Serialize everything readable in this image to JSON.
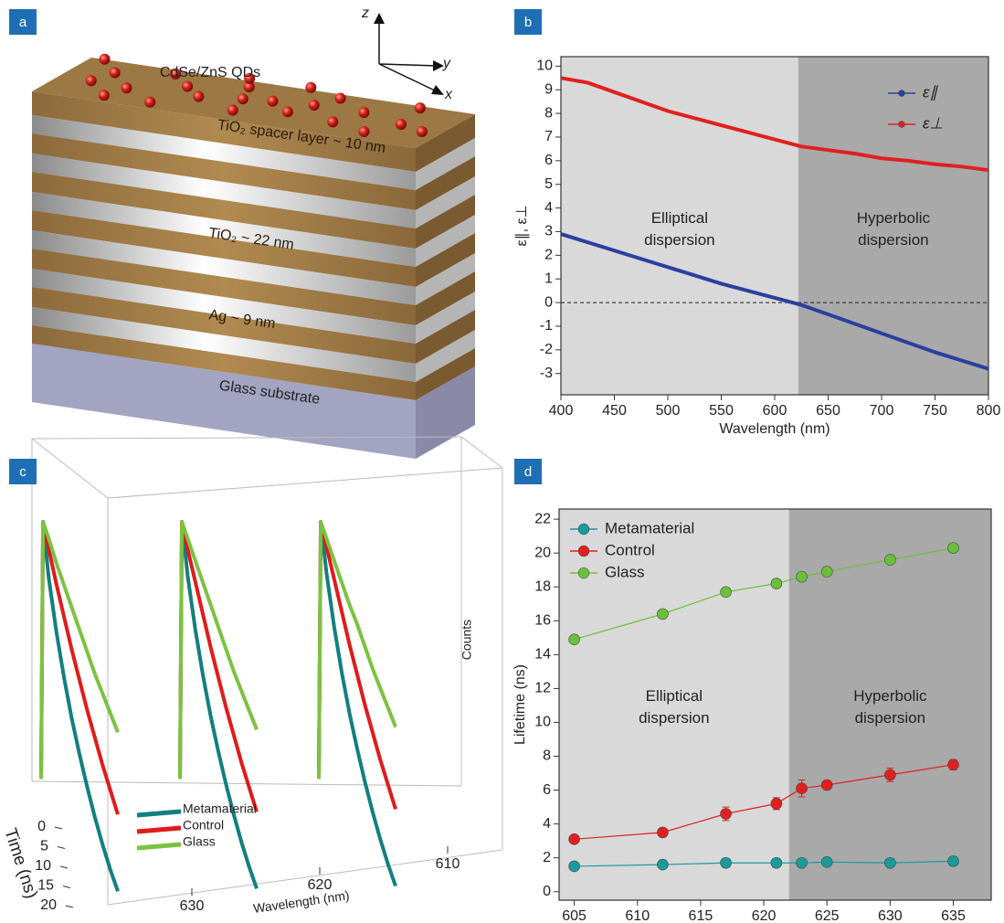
{
  "panel_labels": [
    "a",
    "b",
    "c",
    "d"
  ],
  "schematic": {
    "top_label": "CdSe/ZnS QDs",
    "layers": [
      "TiO₂ spacer layer ~ 10 nm",
      "TiO₂ ~ 22 nm",
      "Ag ~ 9 nm",
      "Glass substrate"
    ],
    "axes": [
      "z",
      "y",
      "x"
    ]
  },
  "chart_data": [
    {
      "type": "line",
      "x": [
        400,
        425,
        450,
        475,
        500,
        525,
        550,
        575,
        600,
        625,
        650,
        675,
        700,
        725,
        750,
        775,
        800
      ],
      "series": [
        {
          "name": "ε∥",
          "color": "#2b3f9e",
          "values": [
            2.9,
            2.55,
            2.2,
            1.85,
            1.5,
            1.15,
            0.8,
            0.5,
            0.2,
            -0.1,
            -0.5,
            -0.9,
            -1.3,
            -1.7,
            -2.1,
            -2.45,
            -2.8
          ]
        },
        {
          "name": "ε⊥",
          "color": "#e02020",
          "values": [
            9.5,
            9.3,
            8.9,
            8.5,
            8.1,
            7.8,
            7.5,
            7.2,
            6.9,
            6.6,
            6.45,
            6.3,
            6.1,
            6.0,
            5.85,
            5.75,
            5.6
          ]
        }
      ],
      "xlim": [
        400,
        800
      ],
      "ylim": [
        -3.9,
        10.4
      ],
      "xticks": [
        400,
        450,
        500,
        550,
        600,
        650,
        700,
        750,
        800
      ],
      "yticks": [
        -3,
        -2,
        -1,
        0,
        1,
        2,
        3,
        4,
        5,
        6,
        7,
        8,
        9,
        10
      ],
      "xlabel": "Wavelength (nm)",
      "ylabel": "ε∥, ε⊥",
      "boundary": 622,
      "regions": [
        [
          "Elliptical",
          "dispersion"
        ],
        [
          "Hyperbolic",
          "dispersion"
        ]
      ],
      "reference_line": 0,
      "legend": "upper right"
    },
    {
      "type": "decay3d",
      "x": [
        0,
        0.5,
        2,
        4,
        6,
        8,
        10,
        12,
        14,
        16,
        18,
        20
      ],
      "wavelengths": [
        630,
        620,
        610
      ],
      "series": [
        {
          "name": "Metamaterial",
          "color": "#137f7f",
          "values": [
            [
              0.02,
              1,
              0.82,
              0.66,
              0.53,
              0.42,
              0.33,
              0.25,
              0.18,
              0.12,
              0.07,
              0.03
            ],
            [
              0.02,
              1,
              0.83,
              0.67,
              0.54,
              0.43,
              0.34,
              0.26,
              0.19,
              0.13,
              0.08,
              0.04
            ],
            [
              0.02,
              1,
              0.84,
              0.68,
              0.55,
              0.44,
              0.35,
              0.27,
              0.2,
              0.14,
              0.09,
              0.05
            ]
          ]
        },
        {
          "name": "Control",
          "color": "#e01b1b",
          "values": [
            [
              0.02,
              1,
              0.93,
              0.84,
              0.76,
              0.68,
              0.61,
              0.54,
              0.48,
              0.42,
              0.37,
              0.32
            ],
            [
              0.02,
              1,
              0.93,
              0.85,
              0.77,
              0.69,
              0.62,
              0.55,
              0.49,
              0.43,
              0.38,
              0.33
            ],
            [
              0.02,
              1,
              0.94,
              0.86,
              0.78,
              0.7,
              0.63,
              0.56,
              0.5,
              0.44,
              0.39,
              0.34
            ]
          ]
        },
        {
          "name": "Glass",
          "color": "#7cc242",
          "values": [
            [
              0.02,
              1,
              0.97,
              0.92,
              0.88,
              0.84,
              0.8,
              0.76,
              0.72,
              0.69,
              0.66,
              0.63
            ],
            [
              0.02,
              1,
              0.97,
              0.93,
              0.89,
              0.85,
              0.81,
              0.77,
              0.73,
              0.7,
              0.67,
              0.64
            ],
            [
              0.02,
              1,
              0.97,
              0.93,
              0.89,
              0.85,
              0.82,
              0.78,
              0.74,
              0.71,
              0.68,
              0.65
            ]
          ]
        }
      ],
      "xticks": [
        0,
        5,
        10,
        15,
        20
      ],
      "zlim": [
        0,
        1
      ],
      "xlabel": "Time (ns)",
      "wlabel": "Wavelength (nm)",
      "zlabel": "Counts",
      "legend": "lower left"
    },
    {
      "type": "line",
      "x": [
        605,
        612,
        617,
        621,
        623,
        625,
        630,
        635
      ],
      "series": [
        {
          "name": "Metamaterial",
          "color": "#1a9a9a",
          "values": [
            1.5,
            1.6,
            1.7,
            1.7,
            1.7,
            1.75,
            1.7,
            1.8
          ]
        },
        {
          "name": "Control",
          "color": "#e02020",
          "values": [
            3.1,
            3.5,
            4.6,
            5.2,
            6.1,
            6.3,
            6.9,
            7.5
          ],
          "errors": [
            0.2,
            0.15,
            0.4,
            0.35,
            0.5,
            0.2,
            0.4,
            0.3
          ]
        },
        {
          "name": "Glass",
          "color": "#6cbf3a",
          "values": [
            14.9,
            16.4,
            17.7,
            18.2,
            18.6,
            18.9,
            19.6,
            20.3
          ]
        }
      ],
      "xlim": [
        603.8,
        638
      ],
      "ylim": [
        -0.5,
        22.6
      ],
      "xticks": [
        605,
        610,
        615,
        620,
        625,
        630,
        635
      ],
      "yticks": [
        0,
        2,
        4,
        6,
        8,
        10,
        12,
        14,
        16,
        18,
        20,
        22
      ],
      "xlabel": "Wavelength (nm)",
      "ylabel": "Lifetime (ns)",
      "boundary": 622,
      "regions": [
        [
          "Elliptical",
          "dispersion"
        ],
        [
          "Hyperbolic",
          "dispersion"
        ]
      ],
      "markers": true,
      "legend": "upper left"
    }
  ]
}
